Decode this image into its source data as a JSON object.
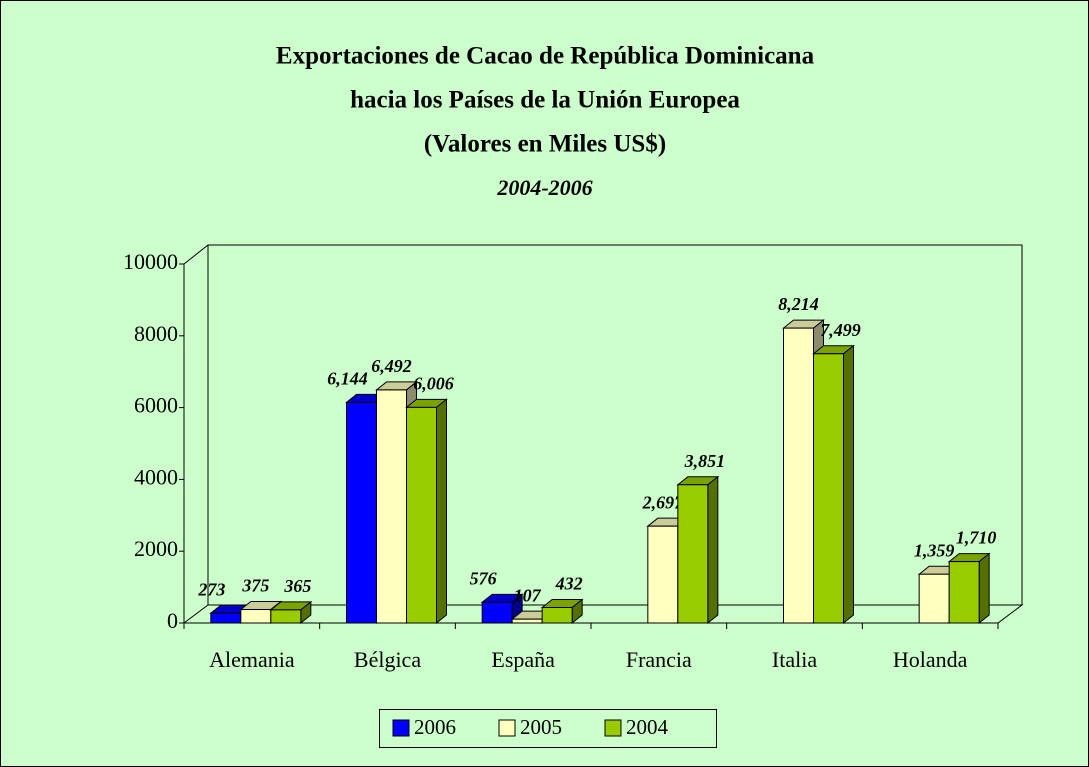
{
  "chart_data": {
    "type": "bar3d",
    "title": [
      "Exportaciones de Cacao de República Dominicana",
      "hacia los Países de la Unión Europea",
      "(Valores en Miles US$)"
    ],
    "subtitle": "2004-2006",
    "categories": [
      "Alemania",
      "Bélgica",
      "España",
      "Francia",
      "Italia",
      "Holanda"
    ],
    "series": [
      {
        "name": "2006",
        "color": "#0000ff",
        "values": [
          273,
          6144,
          576,
          null,
          null,
          null
        ],
        "value_labels": [
          "273",
          "6,144",
          "576",
          null,
          null,
          null
        ]
      },
      {
        "name": "2005",
        "color": "#ffffc0",
        "values": [
          375,
          6492,
          107,
          2697,
          8214,
          1359
        ],
        "value_labels": [
          "375",
          "6,492",
          "107",
          "2,697",
          "8,214",
          "1,359"
        ]
      },
      {
        "name": "2004",
        "color": "#99cc00",
        "values": [
          365,
          6006,
          432,
          3851,
          7499,
          1710
        ],
        "value_labels": [
          "365",
          "6,006",
          "432",
          "3,851",
          "7,499",
          "1,710"
        ]
      }
    ],
    "ylim": [
      0,
      10000
    ],
    "yticks": [
      0,
      2000,
      4000,
      6000,
      8000,
      10000
    ],
    "grid": false,
    "legend": "bottom"
  }
}
